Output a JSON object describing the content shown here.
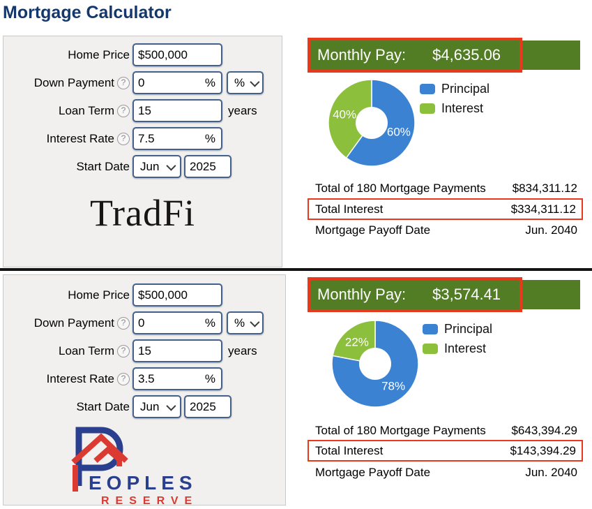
{
  "title": "Mortgage Calculator",
  "icons": {
    "help_glyph": "?"
  },
  "colors": {
    "title_navy": "#14386b",
    "banner_green": "#527d24",
    "highlight_red": "#e8391c",
    "donut_blue": "#3b82d3",
    "donut_green": "#8cc03c",
    "logo_blue": "#2b3f8f",
    "logo_red": "#da3a31"
  },
  "calculators": [
    {
      "id": "tradfi",
      "logo_text": "TradFi",
      "form": {
        "home_price": {
          "label": "Home Price",
          "value": "$500,000"
        },
        "down_payment": {
          "label": "Down Payment",
          "value": "0",
          "suffix": "%",
          "unit": "%"
        },
        "loan_term": {
          "label": "Loan Term",
          "value": "15",
          "unit": "years"
        },
        "interest_rate": {
          "label": "Interest Rate",
          "value": "7.5",
          "suffix": "%"
        },
        "start_date": {
          "label": "Start Date",
          "month": "Jun",
          "year": "2025"
        }
      },
      "banner": {
        "label": "Monthly Pay:",
        "value": "$4,635.06"
      },
      "results": {
        "payments": {
          "label": "Total of 180 Mortgage Payments",
          "value": "$834,311.12"
        },
        "interest": {
          "label": "Total Interest",
          "value": "$334,311.12"
        },
        "payoff": {
          "label": "Mortgage Payoff Date",
          "value": "Jun. 2040"
        }
      }
    },
    {
      "id": "peoples-reserve",
      "logo": {
        "peoples": "EOPLES",
        "reserve": "RESERVE"
      },
      "form": {
        "home_price": {
          "label": "Home Price",
          "value": "$500,000"
        },
        "down_payment": {
          "label": "Down Payment",
          "value": "0",
          "suffix": "%",
          "unit": "%"
        },
        "loan_term": {
          "label": "Loan Term",
          "value": "15",
          "unit": "years"
        },
        "interest_rate": {
          "label": "Interest Rate",
          "value": "3.5",
          "suffix": "%"
        },
        "start_date": {
          "label": "Start Date",
          "month": "Jun",
          "year": "2025"
        }
      },
      "banner": {
        "label": "Monthly Pay:",
        "value": "$3,574.41"
      },
      "results": {
        "payments": {
          "label": "Total of 180 Mortgage Payments",
          "value": "$643,394.29"
        },
        "interest": {
          "label": "Total Interest",
          "value": "$143,394.29"
        },
        "payoff": {
          "label": "Mortgage Payoff Date",
          "value": "Jun. 2040"
        }
      }
    }
  ],
  "chart_data": [
    {
      "type": "pie",
      "style": "donut",
      "title": "TradFi payment breakdown",
      "labels": [
        "Principal",
        "Interest"
      ],
      "values": [
        60,
        40
      ],
      "unit": "%",
      "colors": [
        "#3b82d3",
        "#8cc03c"
      ],
      "legend_position": "right"
    },
    {
      "type": "pie",
      "style": "donut",
      "title": "Peoples Reserve payment breakdown",
      "labels": [
        "Principal",
        "Interest"
      ],
      "values": [
        78,
        22
      ],
      "unit": "%",
      "colors": [
        "#3b82d3",
        "#8cc03c"
      ],
      "legend_position": "right"
    }
  ]
}
